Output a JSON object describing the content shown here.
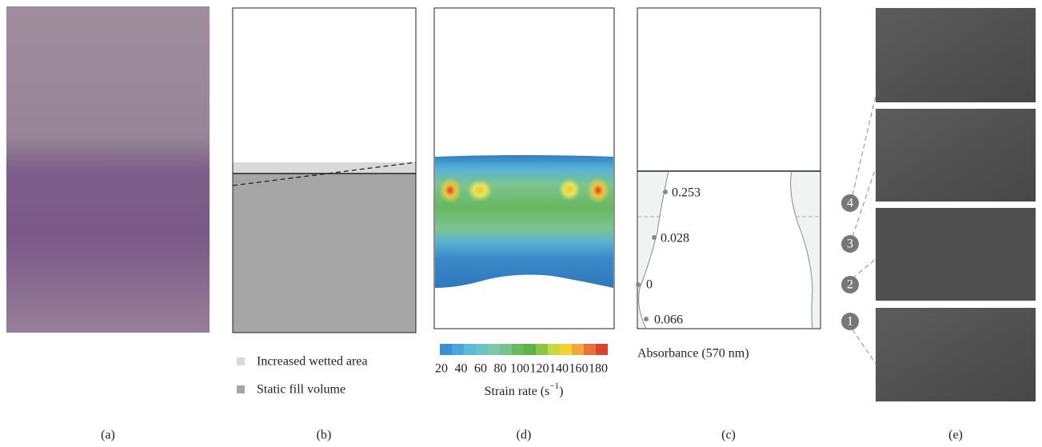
{
  "panel_labels": [
    "(a)",
    "(b)",
    "(d)",
    "(c)",
    "(e)"
  ],
  "panel_b": {
    "legend": [
      "Increased wetted area",
      "Static fill volume"
    ]
  },
  "panel_d": {
    "colorbar_ticks": [
      20,
      40,
      60,
      80,
      100,
      120,
      140,
      160,
      180
    ],
    "colorbar_label": [
      "Strain rate (s",
      "−1",
      ")"
    ]
  },
  "panel_c": {
    "annotations": [
      "0.253",
      "0.028",
      "0",
      "0.066"
    ],
    "axis_label": "Absorbance (570 nm)"
  },
  "panel_e": {
    "markers": [
      "4",
      "3",
      "2",
      "1"
    ]
  }
}
